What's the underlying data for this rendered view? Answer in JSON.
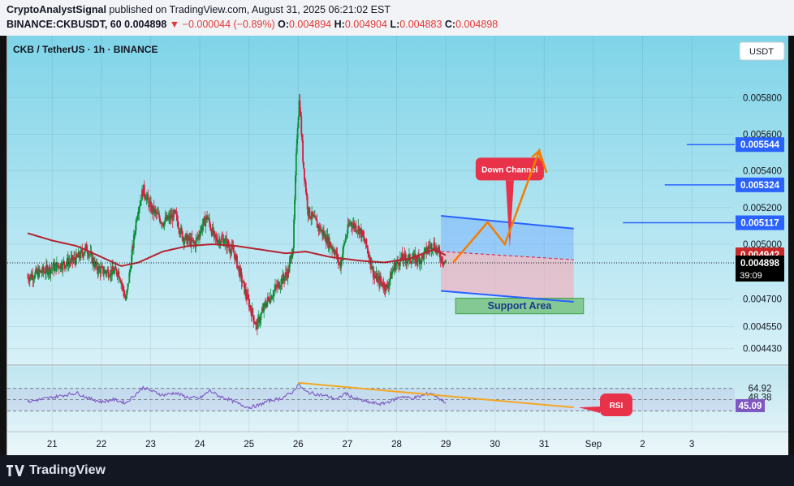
{
  "header": {
    "author": "CryptoAnalystSignal",
    "published_text": "published on TradingView.com, August 31, 2025 06:21:02 EST",
    "symbol": "BINANCE:CKBUSDT, 60",
    "last": "0.004898",
    "change": "▼ −0.000044 (−0.89%)",
    "o_label": "O:",
    "o": "0.004894",
    "h_label": "H:",
    "h": "0.004904",
    "l_label": "L:",
    "l": "0.004883",
    "c_label": "C:",
    "c": "0.004898"
  },
  "legend": "CKB / TetherUS · 1h · BINANCE",
  "currency_button": "USDT",
  "footer": {
    "brand": "TradingView"
  },
  "colors": {
    "up": "#0a8f3a",
    "down": "#d81b3c",
    "ma": "#b3232f",
    "accent": "#2962ff",
    "projection": "#f57c00",
    "rsi": "#7e57c2"
  },
  "chart_data": {
    "type": "candlestick",
    "ylim": [
      0.00443,
      0.00594
    ],
    "y_ticks": [
      "0.005800",
      "0.005600",
      "0.005400",
      "0.005200",
      "0.005000",
      "0.004700",
      "0.004550",
      "0.004430"
    ],
    "x_ticks": [
      "21",
      "22",
      "23",
      "24",
      "25",
      "26",
      "27",
      "28",
      "29",
      "30",
      "31",
      "Sep",
      "2",
      "3"
    ],
    "price_path": [
      [
        0,
        0.00482
      ],
      [
        1,
        0.00487
      ],
      [
        2,
        0.00492
      ],
      [
        2.4,
        0.00498
      ],
      [
        2.8,
        0.00487
      ],
      [
        3.1,
        0.00485
      ],
      [
        3.7,
        0.00485
      ],
      [
        4.0,
        0.00469
      ],
      [
        4.2,
        0.0049
      ],
      [
        4.45,
        0.00517
      ],
      [
        4.7,
        0.0053
      ],
      [
        5.0,
        0.0052
      ],
      [
        5.5,
        0.00512
      ],
      [
        6.0,
        0.00516
      ],
      [
        6.3,
        0.00504
      ],
      [
        6.8,
        0.005
      ],
      [
        7.1,
        0.0051
      ],
      [
        7.3,
        0.00515
      ],
      [
        7.6,
        0.00503
      ],
      [
        8.0,
        0.00502
      ],
      [
        8.4,
        0.00495
      ],
      [
        8.8,
        0.00476
      ],
      [
        9.3,
        0.00455
      ],
      [
        9.7,
        0.00468
      ],
      [
        10.2,
        0.00478
      ],
      [
        10.6,
        0.00485
      ],
      [
        10.8,
        0.005
      ],
      [
        10.95,
        0.0056
      ],
      [
        11.05,
        0.0058
      ],
      [
        11.2,
        0.00545
      ],
      [
        11.4,
        0.00518
      ],
      [
        11.8,
        0.0051
      ],
      [
        12.2,
        0.00502
      ],
      [
        12.5,
        0.00496
      ],
      [
        12.7,
        0.00488
      ],
      [
        12.9,
        0.00502
      ],
      [
        13.1,
        0.00512
      ],
      [
        13.5,
        0.00508
      ],
      [
        13.8,
        0.00498
      ],
      [
        14.1,
        0.00482
      ],
      [
        14.4,
        0.00479
      ],
      [
        14.6,
        0.00476
      ],
      [
        14.9,
        0.00488
      ],
      [
        15.2,
        0.00492
      ],
      [
        15.6,
        0.00492
      ],
      [
        16.0,
        0.00492
      ],
      [
        16.3,
        0.00498
      ],
      [
        16.5,
        0.005
      ],
      [
        16.8,
        0.00493
      ],
      [
        17.0,
        0.0049
      ]
    ],
    "ma_path": [
      [
        0,
        0.00506
      ],
      [
        1,
        0.00502
      ],
      [
        2,
        0.00499
      ],
      [
        3,
        0.00493
      ],
      [
        3.8,
        0.00488
      ],
      [
        4.5,
        0.0049
      ],
      [
        5.5,
        0.00496
      ],
      [
        6.5,
        0.00499
      ],
      [
        7.5,
        0.005
      ],
      [
        8.5,
        0.00499
      ],
      [
        9.5,
        0.00497
      ],
      [
        10.5,
        0.00495
      ],
      [
        11.3,
        0.00496
      ],
      [
        12.3,
        0.00493
      ],
      [
        13.5,
        0.00491
      ],
      [
        14.5,
        0.0049
      ],
      [
        15.5,
        0.00492
      ],
      [
        16.5,
        0.00497
      ],
      [
        17.0,
        0.00494
      ]
    ],
    "current_price": "0.004898",
    "countdown": "39:09",
    "ma_label": "0.004942",
    "targets": [
      "0.005544",
      "0.005324",
      "0.005117"
    ],
    "annotations": {
      "down_channel": "Down Channel",
      "support": "Support Area",
      "rsi": "RSI"
    },
    "projection": [
      [
        17.3,
        0.0049
      ],
      [
        18.7,
        0.00512
      ],
      [
        19.4,
        0.005
      ],
      [
        20.8,
        0.00551
      ],
      [
        21.1,
        0.00539
      ]
    ],
    "rsi": {
      "levels": [
        "64.92",
        "48.38",
        "45.09"
      ],
      "values": [
        [
          0,
          46
        ],
        [
          1,
          54
        ],
        [
          2,
          62
        ],
        [
          2.5,
          52
        ],
        [
          3,
          46
        ],
        [
          3.5,
          50
        ],
        [
          4,
          44
        ],
        [
          4.4,
          60
        ],
        [
          4.7,
          72
        ],
        [
          5,
          66
        ],
        [
          5.5,
          58
        ],
        [
          6,
          62
        ],
        [
          6.5,
          54
        ],
        [
          7,
          52
        ],
        [
          7.4,
          66
        ],
        [
          7.8,
          56
        ],
        [
          8.2,
          50
        ],
        [
          8.6,
          42
        ],
        [
          9,
          36
        ],
        [
          9.4,
          40
        ],
        [
          9.8,
          48
        ],
        [
          10.3,
          52
        ],
        [
          10.8,
          64
        ],
        [
          11.0,
          78
        ],
        [
          11.3,
          64
        ],
        [
          11.7,
          60
        ],
        [
          12.2,
          56
        ],
        [
          12.6,
          50
        ],
        [
          12.9,
          62
        ],
        [
          13.2,
          54
        ],
        [
          13.6,
          48
        ],
        [
          14.0,
          44
        ],
        [
          14.4,
          42
        ],
        [
          14.8,
          48
        ],
        [
          15.2,
          56
        ],
        [
          15.6,
          52
        ],
        [
          16.0,
          56
        ],
        [
          16.4,
          62
        ],
        [
          16.8,
          50
        ],
        [
          17.0,
          45
        ]
      ]
    }
  }
}
